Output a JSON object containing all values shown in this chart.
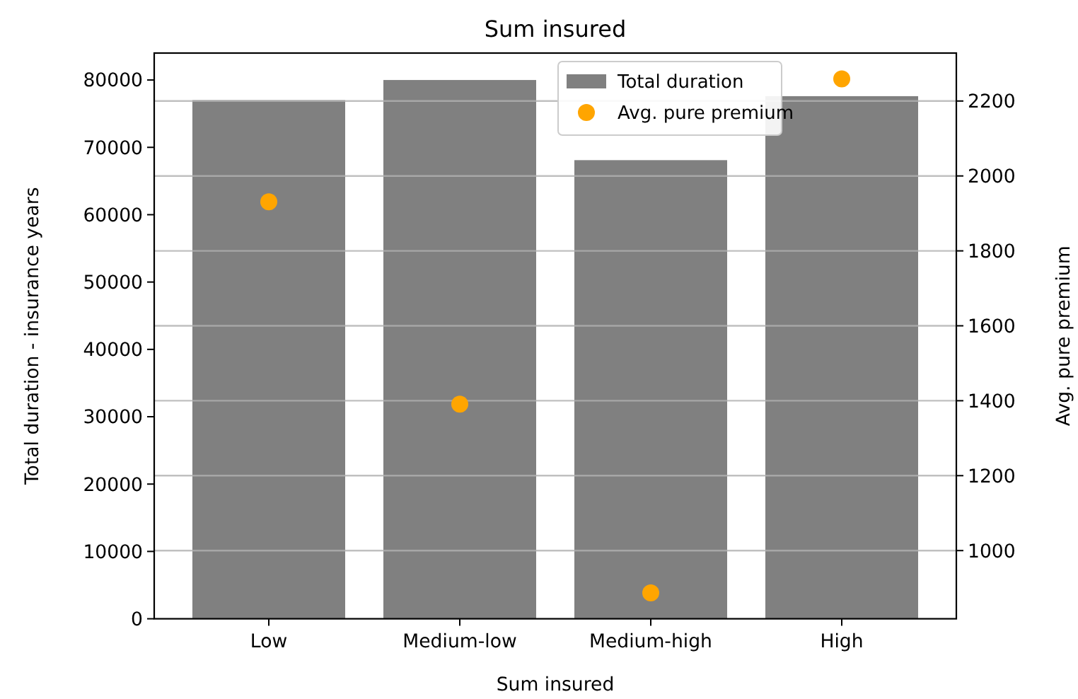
{
  "chart_data": {
    "type": "bar",
    "title": "Sum insured",
    "xlabel": "Sum insured",
    "ylabel": "Total duration - insurance years",
    "y2label": "Avg. pure premium",
    "categories": [
      "Low",
      "Medium-low",
      "Medium-high",
      "High"
    ],
    "series": [
      {
        "name": "Total duration",
        "color": "#808080",
        "values": [
          77000,
          80000,
          68100,
          77600
        ]
      },
      {
        "name": "Avg. pure premium",
        "type": "scatter",
        "axis": "y2",
        "color": "#ffa500",
        "x": [
          "Low",
          "Medium-low",
          "Medium-high",
          "High"
        ],
        "values": [
          1931,
          1391,
          887,
          2259
        ]
      }
    ],
    "ylim": [
      0,
      84000
    ],
    "yticks": [
      0,
      10000,
      20000,
      30000,
      40000,
      50000,
      60000,
      70000,
      80000
    ],
    "y2lim": [
      818,
      2328
    ],
    "y2ticks": [
      1000,
      1200,
      1400,
      1600,
      1800,
      2000,
      2200
    ],
    "grid": "y2",
    "legend": "top center",
    "marker": "circle"
  }
}
